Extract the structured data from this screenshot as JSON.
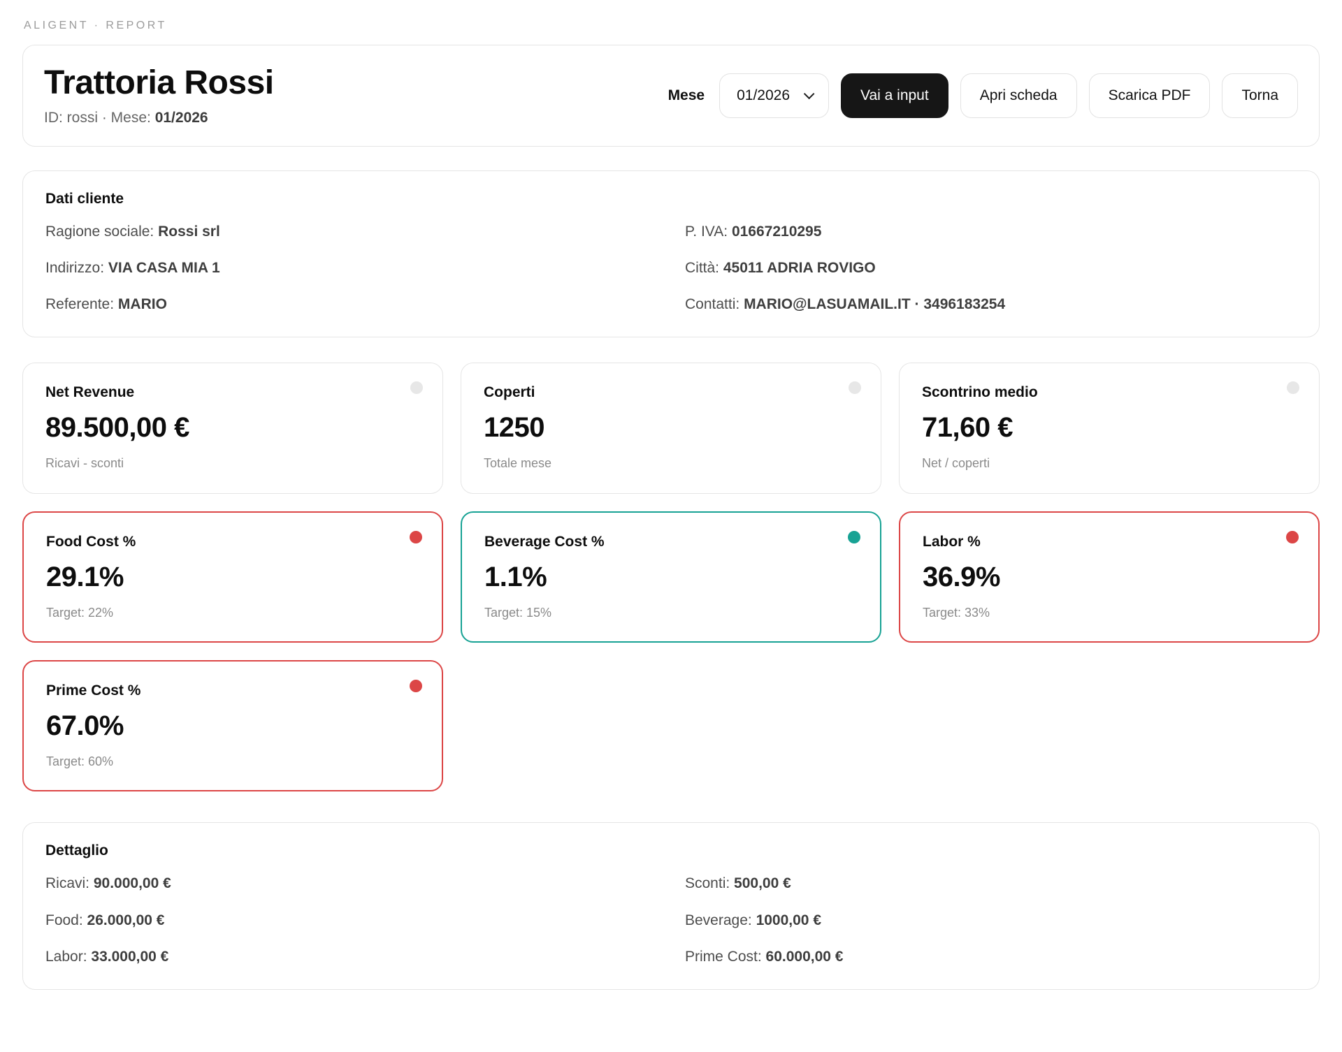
{
  "page": {
    "eyebrow": "ALIGENT · REPORT"
  },
  "header": {
    "title": "Trattoria Rossi",
    "meta_prefix": "ID: rossi · Mese:",
    "meta_value": "01/2026",
    "month_label": "Mese",
    "month_value": "01/2026",
    "buttons": {
      "go_input": "Vai a input",
      "open_sheet": "Apri scheda",
      "download_pdf": "Scarica PDF",
      "back": "Torna"
    }
  },
  "client": {
    "title": "Dati cliente",
    "fields": [
      {
        "label": "Ragione sociale:",
        "value": "Rossi srl"
      },
      {
        "label": "P. IVA:",
        "value": "01667210295"
      },
      {
        "label": "Indirizzo:",
        "value": "VIA CASA MIA 1"
      },
      {
        "label": "Città:",
        "value": "45011 ADRIA ROVIGO"
      },
      {
        "label": "Referente:",
        "value": "MARIO"
      },
      {
        "label": "Contatti:",
        "value": "MARIO@LASUAMAIL.IT · 3496183254"
      }
    ]
  },
  "kpis": [
    {
      "title": "Net Revenue",
      "value": "89.500,00 €",
      "sub": "Ricavi - sconti",
      "status": "neutral"
    },
    {
      "title": "Coperti",
      "value": "1250",
      "sub": "Totale mese",
      "status": "neutral"
    },
    {
      "title": "Scontrino medio",
      "value": "71,60 €",
      "sub": "Net / coperti",
      "status": "neutral"
    },
    {
      "title": "Food Cost %",
      "value": "29.1%",
      "sub": "Target: 22%",
      "status": "bad"
    },
    {
      "title": "Beverage Cost %",
      "value": "1.1%",
      "sub": "Target: 15%",
      "status": "good"
    },
    {
      "title": "Labor %",
      "value": "36.9%",
      "sub": "Target: 33%",
      "status": "bad"
    },
    {
      "title": "Prime Cost %",
      "value": "67.0%",
      "sub": "Target: 60%",
      "status": "bad"
    }
  ],
  "detail": {
    "title": "Dettaglio",
    "fields": [
      {
        "label": "Ricavi:",
        "value": "90.000,00 €"
      },
      {
        "label": "Sconti:",
        "value": "500,00 €"
      },
      {
        "label": "Food:",
        "value": "26.000,00 €"
      },
      {
        "label": "Beverage:",
        "value": "1000,00 €"
      },
      {
        "label": "Labor:",
        "value": "33.000,00 €"
      },
      {
        "label": "Prime Cost:",
        "value": "60.000,00 €"
      }
    ]
  },
  "colors": {
    "status_bad": "#dc4646",
    "status_good": "#17a294",
    "status_neutral_dot": "#e7e7e7",
    "primary_button_bg": "#161616",
    "card_border": "#e5e5e5"
  }
}
